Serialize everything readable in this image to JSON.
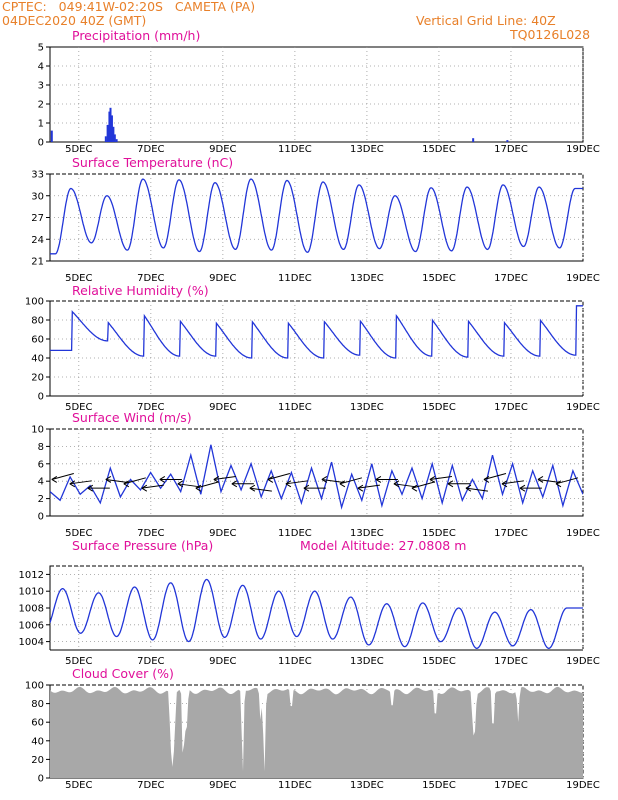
{
  "header": {
    "left_line1": "CPTEC:   049:41W-02:20S   CAMETA (PA)",
    "left_line2": "04DEC2020 40Z (GMT)",
    "right_line1": "Vertical Grid Line: 40Z",
    "right_line2": "TQ0126L028"
  },
  "colors": {
    "header": "#e8802a",
    "title": "#e0109a",
    "series": "#2236d8",
    "cloud": "#a8a8a8"
  },
  "x_tick_labels": [
    "5DEC",
    "7DEC",
    "9DEC",
    "11DEC",
    "13DEC",
    "15DEC",
    "17DEC",
    "19DEC"
  ],
  "chart_data": [
    {
      "type": "bar",
      "title": "Precipitation (mm/h)",
      "ylim": [
        0,
        5
      ],
      "yticks": [
        "0",
        "1",
        "2",
        "3",
        "4",
        "5"
      ],
      "x_day_range": [
        4.2,
        19.0
      ],
      "points": [
        [
          4.25,
          0.6
        ],
        [
          5.75,
          0.3
        ],
        [
          5.8,
          0.9
        ],
        [
          5.85,
          1.6
        ],
        [
          5.88,
          1.8
        ],
        [
          5.92,
          1.4
        ],
        [
          5.96,
          0.8
        ],
        [
          6.0,
          0.4
        ],
        [
          6.05,
          0.15
        ],
        [
          15.95,
          0.2
        ],
        [
          16.9,
          0.1
        ]
      ]
    },
    {
      "type": "line",
      "title": "Surface Temperature (nC)",
      "ylim": [
        21,
        33
      ],
      "yticks": [
        "21",
        "24",
        "27",
        "30",
        "33"
      ],
      "daily_max": [
        31.0,
        30.0,
        32.3,
        32.2,
        31.8,
        32.3,
        32.1,
        31.9,
        31.5,
        30.0,
        31.1,
        31.2,
        31.5,
        31.2,
        31.0
      ],
      "daily_min": [
        22.0,
        23.5,
        22.5,
        22.8,
        22.3,
        22.6,
        22.5,
        22.2,
        22.6,
        22.7,
        22.3,
        22.4,
        22.6,
        23.0,
        22.8
      ]
    },
    {
      "type": "line",
      "title": "Relative Humidity (%)",
      "ylim": [
        0,
        100
      ],
      "yticks": [
        "0",
        "20",
        "40",
        "60",
        "80",
        "100"
      ],
      "daily_max": [
        100,
        90,
        100,
        92,
        90,
        92,
        90,
        91,
        93,
        100,
        94,
        92,
        90,
        93,
        95
      ],
      "daily_min": [
        48,
        58,
        42,
        42,
        42,
        40,
        40,
        40,
        43,
        40,
        42,
        41,
        42,
        42,
        43
      ]
    },
    {
      "type": "line",
      "title": "Surface Wind (m/s)",
      "ylim": [
        0,
        10
      ],
      "yticks": [
        "0",
        "2",
        "4",
        "6",
        "8",
        "10"
      ],
      "values": [
        2.8,
        1.8,
        4.5,
        2.5,
        3.5,
        1.5,
        5.5,
        2.2,
        4.2,
        3.0,
        5.0,
        3.2,
        4.8,
        2.8,
        7.0,
        2.5,
        8.2,
        2.8,
        5.8,
        3.0,
        6.0,
        2.2,
        5.2,
        2.0,
        5.0,
        1.5,
        5.5,
        2.0,
        6.2,
        1.0,
        4.8,
        1.8,
        6.0,
        1.2,
        5.2,
        2.5,
        5.5,
        2.0,
        6.0,
        1.5,
        5.8,
        1.8,
        4.2,
        2.0,
        7.0,
        2.5,
        6.0,
        1.5,
        5.2,
        2.2,
        5.8,
        1.2,
        5.2,
        2.5
      ]
    },
    {
      "type": "line",
      "title": "Surface Pressure (hPa)",
      "annotation": "Model Altitude: 27.0808 m",
      "ylim": [
        1003,
        1013
      ],
      "yticks": [
        "1004",
        "1006",
        "1008",
        "1010",
        "1012"
      ],
      "daily_max": [
        1010.3,
        1009.8,
        1010.5,
        1011.0,
        1011.4,
        1010.7,
        1010.0,
        1010.0,
        1009.3,
        1008.5,
        1008.6,
        1008.0,
        1007.5,
        1007.8,
        1008.0
      ],
      "daily_min": [
        1005.2,
        1005.0,
        1004.6,
        1004.2,
        1004.0,
        1004.5,
        1004.3,
        1004.6,
        1004.3,
        1003.6,
        1003.4,
        1004.0,
        1003.2,
        1003.5,
        1003.2
      ]
    },
    {
      "type": "area",
      "title": "Cloud Cover (%)",
      "ylim": [
        0,
        100
      ],
      "yticks": [
        "0",
        "20",
        "40",
        "60",
        "80",
        "100"
      ],
      "baseline": 94,
      "dips": [
        [
          7.55,
          30
        ],
        [
          7.6,
          10
        ],
        [
          7.65,
          25
        ],
        [
          7.9,
          0
        ],
        [
          7.95,
          45
        ],
        [
          8.0,
          55
        ],
        [
          9.55,
          0
        ],
        [
          10.05,
          60
        ],
        [
          10.15,
          0
        ],
        [
          10.9,
          70
        ],
        [
          13.7,
          72
        ],
        [
          14.9,
          60
        ],
        [
          15.95,
          40
        ],
        [
          16.0,
          50
        ],
        [
          16.5,
          45
        ],
        [
          17.2,
          60
        ]
      ]
    }
  ]
}
